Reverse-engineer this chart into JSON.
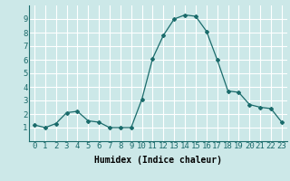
{
  "x": [
    0,
    1,
    2,
    3,
    4,
    5,
    6,
    7,
    8,
    9,
    10,
    11,
    12,
    13,
    14,
    15,
    16,
    17,
    18,
    19,
    20,
    21,
    22,
    23
  ],
  "y": [
    1.2,
    1.0,
    1.3,
    2.1,
    2.2,
    1.5,
    1.4,
    1.0,
    1.0,
    1.0,
    3.1,
    6.1,
    7.8,
    9.0,
    9.3,
    9.2,
    8.1,
    6.0,
    3.7,
    3.6,
    2.7,
    2.5,
    2.4,
    1.4
  ],
  "xlabel": "Humidex (Indice chaleur)",
  "ylim": [
    0,
    10
  ],
  "xlim": [
    -0.5,
    23.5
  ],
  "yticks": [
    1,
    2,
    3,
    4,
    5,
    6,
    7,
    8,
    9
  ],
  "xticks": [
    0,
    1,
    2,
    3,
    4,
    5,
    6,
    7,
    8,
    9,
    10,
    11,
    12,
    13,
    14,
    15,
    16,
    17,
    18,
    19,
    20,
    21,
    22,
    23
  ],
  "line_color": "#1a6b6b",
  "marker": "D",
  "marker_size": 2.0,
  "bg_color": "#cce8e8",
  "grid_color": "#ffffff",
  "xlabel_fontsize": 7,
  "tick_fontsize": 6.5
}
